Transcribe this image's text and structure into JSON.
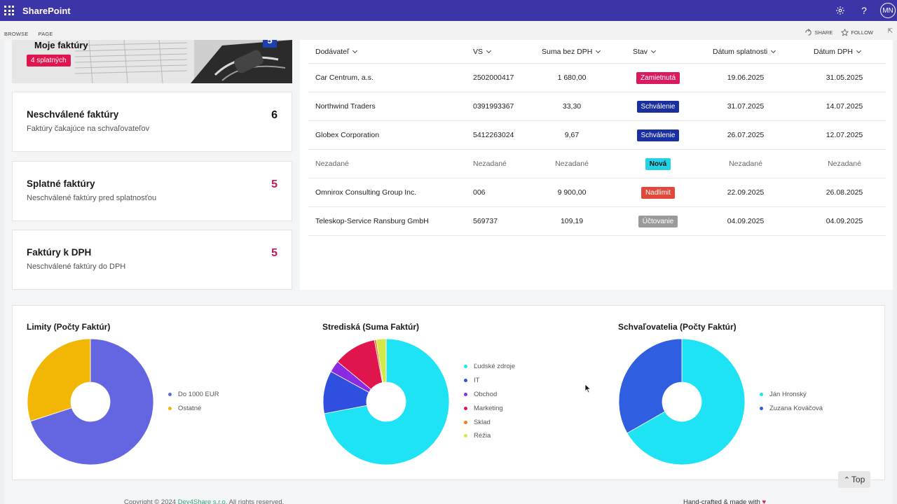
{
  "suitebar": {
    "app_name": "SharePoint",
    "avatar_initials": "MN",
    "settings_icon": "gear-icon",
    "help_icon": "help-icon"
  },
  "ribbon": {
    "tabs": [
      "BROWSE",
      "PAGE"
    ],
    "share_label": "SHARE",
    "follow_label": "FOLLOW"
  },
  "hero": {
    "title": "Moje faktúry",
    "badge": "4 splatných",
    "count": "5"
  },
  "cards": [
    {
      "title": "Neschválené faktúry",
      "subtitle": "Faktúry čakajúce na schvaľovateľov",
      "count": "6",
      "count_color": "#111111"
    },
    {
      "title": "Splatné faktúry",
      "subtitle": "Neschválené faktúry pred splatnosťou",
      "count": "5",
      "count_color": "#c0185a"
    },
    {
      "title": "Faktúry k DPH",
      "subtitle": "Neschválené faktúry do DPH",
      "count": "5",
      "count_color": "#c0185a"
    }
  ],
  "table": {
    "columns": [
      "Dodávateľ",
      "VS",
      "Suma bez DPH",
      "Stav",
      "Dátum splatnosti",
      "Dátum DPH"
    ],
    "rows": [
      {
        "supplier": "Car Centrum, a.s.",
        "vs": "2502000417",
        "amount": "1 680,00",
        "status": "Zamietnutá",
        "status_color": "#d81b60",
        "due": "19.06.2025",
        "vat": "31.05.2025",
        "muted": false
      },
      {
        "supplier": "Northwind Traders",
        "vs": "0391993367",
        "amount": "33,30",
        "status": "Schválenie",
        "status_color": "#1a2fa0",
        "due": "31.07.2025",
        "vat": "14.07.2025",
        "muted": false
      },
      {
        "supplier": "Globex Corporation",
        "vs": "5412263024",
        "amount": "9,67",
        "status": "Schválenie",
        "status_color": "#1a2fa0",
        "due": "26.07.2025",
        "vat": "12.07.2025",
        "muted": false
      },
      {
        "supplier": "Nezadané",
        "vs": "Nezadané",
        "amount": "Nezadané",
        "status": "Nová",
        "status_color": "#22d3e6",
        "due": "Nezadané",
        "vat": "Nezadané",
        "muted": true
      },
      {
        "supplier": "Omnirox Consulting Group Inc.",
        "vs": "006",
        "amount": "9 900,00",
        "status": "Nadlimit",
        "status_color": "#e0493a",
        "due": "22.09.2025",
        "vat": "26.08.2025",
        "muted": false
      },
      {
        "supplier": "Teleskop-Service Ransburg GmbH",
        "vs": "569737",
        "amount": "109,19",
        "status": "Účtovanie",
        "status_color": "#9a9a9a",
        "due": "04.09.2025",
        "vat": "04.09.2025",
        "muted": false
      }
    ]
  },
  "chart_data": [
    {
      "type": "pie",
      "title": "Limity (Počty Faktúr)",
      "categories": [
        "Do 1000 EUR",
        "Ostatné"
      ],
      "values": [
        70,
        30
      ],
      "colors": [
        "#6366e0",
        "#f2b705"
      ]
    },
    {
      "type": "pie",
      "title": "Strediská (Suma Faktúr)",
      "categories": [
        "Ľudské zdroje",
        "IT",
        "Obchod",
        "Marketing",
        "Sklad",
        "Réžia"
      ],
      "values": [
        72,
        11,
        3,
        11,
        0.5,
        2.5
      ],
      "colors": [
        "#1ee3f5",
        "#2f4fe0",
        "#8a2be2",
        "#e0154e",
        "#f07c1a",
        "#d4e84a"
      ]
    },
    {
      "type": "pie",
      "title": "Schvaľovatelia (Počty Faktúr)",
      "categories": [
        "Ján Hronský",
        "Zuzana Kováčová"
      ],
      "values": [
        66.7,
        33.3
      ],
      "colors": [
        "#1ee3f5",
        "#2f5ee0"
      ]
    }
  ],
  "top_button": "Top",
  "footer": {
    "copyright_prefix": "Copyright © 2024 ",
    "company": "Dev4Share s.r.o.",
    "copyright_suffix": " All rights reserved.",
    "made_with": "Hand-crafted & made with "
  }
}
